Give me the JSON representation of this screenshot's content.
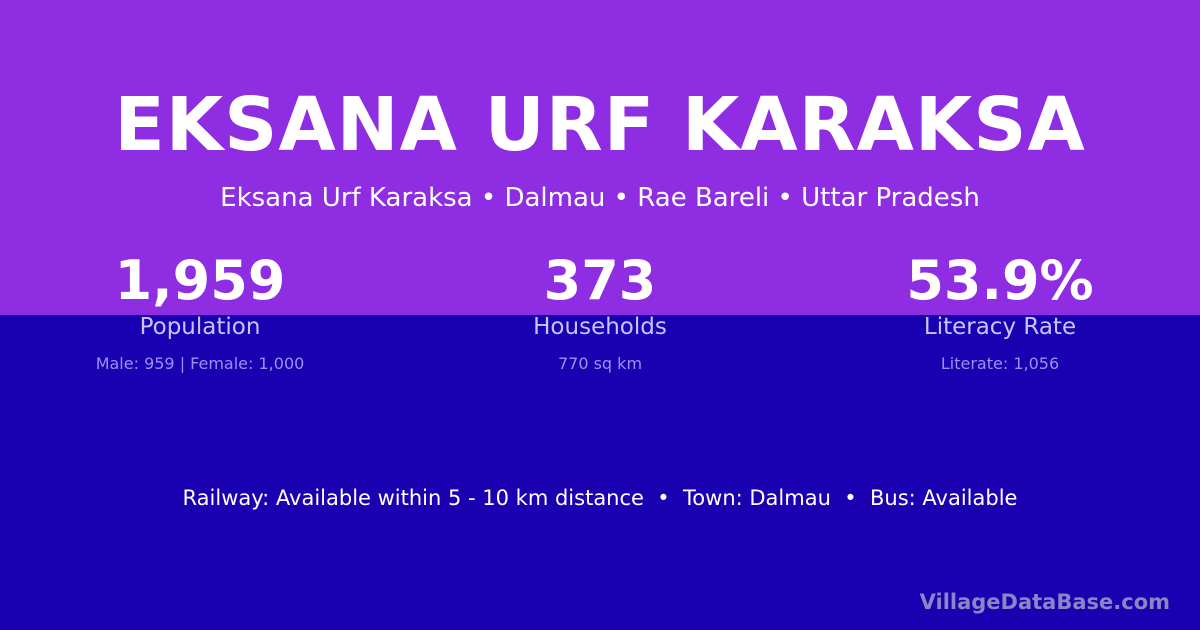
{
  "header": {
    "title": "EKSANA URF KARAKSA",
    "subtitle": "Eksana Urf Karaksa • Dalmau • Rae Bareli • Uttar Pradesh"
  },
  "stats": [
    {
      "value": "1,959",
      "label": "Population",
      "detail": "Male: 959 | Female: 1,000"
    },
    {
      "value": "373",
      "label": "Households",
      "detail": "770 sq km"
    },
    {
      "value": "53.9%",
      "label": "Literacy Rate",
      "detail": "Literate: 1,056"
    }
  ],
  "facts": "Railway: Available within 5 - 10 km distance  •  Town: Dalmau  •  Bus: Available",
  "brand": "VillageDataBase.com",
  "colors": {
    "top_background": "#8e2de2",
    "bottom_background": "#1a00b0"
  }
}
